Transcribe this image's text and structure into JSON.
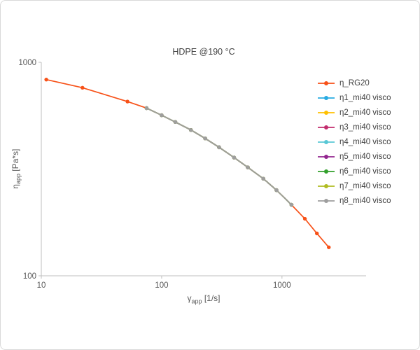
{
  "frame": {
    "background": "#ffffff",
    "border_color": "#d9d9d9"
  },
  "chart_data": {
    "type": "line",
    "title": "HDPE @190 °C",
    "xlabel": {
      "symbol": "γ",
      "sub": "app",
      "unit": " [1/s]"
    },
    "ylabel": {
      "symbol": "η",
      "sub": "app",
      "unit": " [Pa*s]"
    },
    "x_scale": "log",
    "y_scale": "log",
    "xlim": [
      10,
      5000
    ],
    "ylim": [
      100,
      1000
    ],
    "x_ticks": [
      10,
      100,
      1000
    ],
    "y_ticks": [
      100,
      1000
    ],
    "grid": "off",
    "axis_color": "#bfbfbf",
    "tick_label_color": "#595959",
    "legend_position": "right",
    "series": [
      {
        "name": "η_RG20",
        "color": "#f75118",
        "x": [
          11,
          22,
          52,
          75,
          100,
          130,
          175,
          230,
          300,
          400,
          520,
          700,
          900,
          1200,
          1550,
          1950,
          2450
        ],
        "y": [
          830,
          760,
          655,
          610,
          565,
          525,
          482,
          440,
          400,
          358,
          322,
          285,
          252,
          215,
          185,
          158,
          136
        ]
      },
      {
        "name": "η1_mi40 visco",
        "color": "#29abe2",
        "x": [
          75,
          100,
          130,
          175,
          230,
          300,
          400,
          520,
          700,
          900,
          1200
        ],
        "y": [
          610,
          565,
          525,
          482,
          440,
          400,
          358,
          322,
          285,
          252,
          215
        ]
      },
      {
        "name": "η2_mi40 visco",
        "color": "#ffc000",
        "x": [
          75,
          100,
          130,
          175,
          230,
          300,
          400,
          520,
          700,
          900,
          1200
        ],
        "y": [
          610,
          565,
          525,
          482,
          440,
          400,
          358,
          322,
          285,
          252,
          215
        ]
      },
      {
        "name": "η3_mi40 visco",
        "color": "#c22d6e",
        "x": [
          75,
          100,
          130,
          175,
          230,
          300,
          400,
          520,
          700,
          900,
          1200
        ],
        "y": [
          610,
          565,
          525,
          482,
          440,
          400,
          358,
          322,
          285,
          252,
          215
        ]
      },
      {
        "name": "η4_mi40 visco",
        "color": "#59c7d5",
        "x": [
          75,
          100,
          130,
          175,
          230,
          300,
          400,
          520,
          700,
          900,
          1200
        ],
        "y": [
          610,
          565,
          525,
          482,
          440,
          400,
          358,
          322,
          285,
          252,
          215
        ]
      },
      {
        "name": "η5_mi40 visco",
        "color": "#93268f",
        "x": [
          75,
          100,
          130,
          175,
          230,
          300,
          400,
          520,
          700,
          900,
          1200
        ],
        "y": [
          610,
          565,
          525,
          482,
          440,
          400,
          358,
          322,
          285,
          252,
          215
        ]
      },
      {
        "name": "η6_mi40 visco",
        "color": "#33a02c",
        "x": [
          75,
          100,
          130,
          175,
          230,
          300,
          400,
          520,
          700,
          900,
          1200
        ],
        "y": [
          610,
          565,
          525,
          482,
          440,
          400,
          358,
          322,
          285,
          252,
          215
        ]
      },
      {
        "name": "η7_mi40 visco",
        "color": "#b0bc22",
        "x": [
          75,
          100,
          130,
          175,
          230,
          300,
          400,
          520,
          700,
          900,
          1200
        ],
        "y": [
          610,
          565,
          525,
          482,
          440,
          400,
          358,
          322,
          285,
          252,
          215
        ]
      },
      {
        "name": "η8_mi40 visco",
        "color": "#9e9e9e",
        "x": [
          75,
          100,
          130,
          175,
          230,
          300,
          400,
          520,
          700,
          900,
          1200
        ],
        "y": [
          610,
          565,
          525,
          482,
          440,
          400,
          358,
          322,
          285,
          252,
          215
        ]
      }
    ]
  }
}
